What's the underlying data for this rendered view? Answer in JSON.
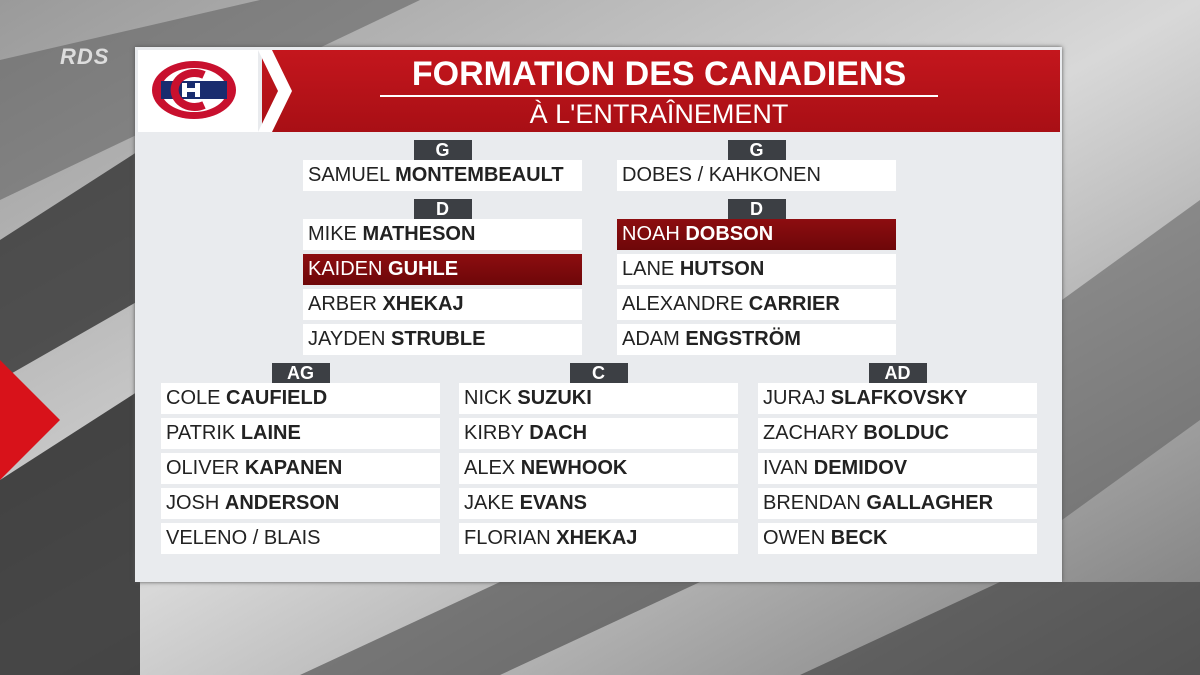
{
  "brand": "RDS",
  "header": {
    "title": "FORMATION DES CANADIENS",
    "subtitle": "À L'ENTRAÎNEMENT"
  },
  "groups": [
    {
      "label": "G",
      "players": [
        {
          "first": "SAMUEL",
          "last": "MONTEMBEAULT"
        }
      ]
    },
    {
      "label": "G",
      "players": [
        {
          "first": "DOBES / KAHKONEN"
        }
      ]
    },
    {
      "label": "D",
      "players": [
        {
          "first": "MIKE",
          "last": "MATHESON"
        },
        {
          "first": "KAIDEN",
          "last": "GUHLE",
          "highlight": true
        },
        {
          "first": "ARBER",
          "last": "XHEKAJ"
        },
        {
          "first": "JAYDEN",
          "last": "STRUBLE"
        }
      ]
    },
    {
      "label": "D",
      "players": [
        {
          "first": "NOAH",
          "last": "DOBSON",
          "highlight": true
        },
        {
          "first": "LANE",
          "last": "HUTSON"
        },
        {
          "first": "ALEXANDRE",
          "last": "CARRIER"
        },
        {
          "first": "ADAM",
          "last": "ENGSTRÖM"
        }
      ]
    },
    {
      "label": "AG",
      "players": [
        {
          "first": "COLE",
          "last": "CAUFIELD"
        },
        {
          "first": "PATRIK",
          "last": "LAINE"
        },
        {
          "first": "OLIVER",
          "last": "KAPANEN"
        },
        {
          "first": "JOSH",
          "last": "ANDERSON"
        },
        {
          "first": "VELENO / BLAIS"
        }
      ]
    },
    {
      "label": "C",
      "players": [
        {
          "first": "NICK",
          "last": "SUZUKI"
        },
        {
          "first": "KIRBY",
          "last": "DACH"
        },
        {
          "first": "ALEX",
          "last": "NEWHOOK"
        },
        {
          "first": "JAKE",
          "last": "EVANS"
        },
        {
          "first": "FLORIAN",
          "last": "XHEKAJ"
        }
      ]
    },
    {
      "label": "AD",
      "players": [
        {
          "first": "JURAJ",
          "last": "SLAFKOVSKY"
        },
        {
          "first": "ZACHARY",
          "last": "BOLDUC"
        },
        {
          "first": "IVAN",
          "last": "DEMIDOV"
        },
        {
          "first": "BRENDAN",
          "last": "GALLAGHER"
        },
        {
          "first": "OWEN",
          "last": "BECK"
        }
      ]
    }
  ]
}
